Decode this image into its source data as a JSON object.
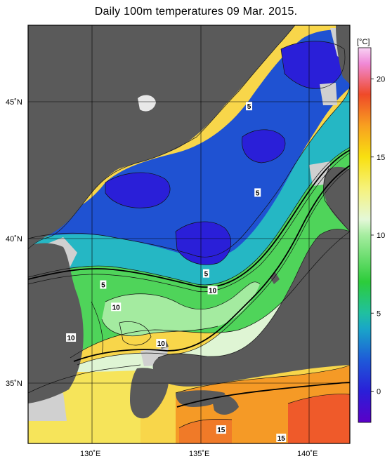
{
  "title": "Daily 100m temperatures 09 Mar. 2015.",
  "map": {
    "lat_labels": [
      "45˚N",
      "40˚N",
      "35˚N"
    ],
    "lon_labels": [
      "130˚E",
      "135˚E",
      "140˚E"
    ],
    "lat_values": [
      45,
      40,
      35
    ],
    "lon_values": [
      130,
      135,
      140
    ],
    "lon_range": [
      127,
      142
    ],
    "lat_range": [
      33,
      48
    ],
    "contour_labels": [
      {
        "text": "5",
        "lon": 137.3,
        "lat": 45.1
      },
      {
        "text": "5",
        "lon": 130.5,
        "lat": 38.7
      },
      {
        "text": "5",
        "lon": 135.3,
        "lat": 39.1
      },
      {
        "text": "5",
        "lon": 137.7,
        "lat": 42.0
      },
      {
        "text": "10",
        "lon": 131.1,
        "lat": 37.9
      },
      {
        "text": "10",
        "lon": 129.0,
        "lat": 36.8
      },
      {
        "text": "10",
        "lon": 135.6,
        "lat": 38.5
      },
      {
        "text": "10",
        "lon": 133.2,
        "lat": 36.6
      },
      {
        "text": "15",
        "lon": 136.0,
        "lat": 33.5
      },
      {
        "text": "15",
        "lon": 138.8,
        "lat": 33.2
      }
    ],
    "colors": {
      "land": "#5a5a5a",
      "shelf": "#d0d0d0",
      "grid": "#000000"
    }
  },
  "colorbar": {
    "unit": "[°C]",
    "tick_labels": [
      "20",
      "15",
      "10",
      "5",
      "0"
    ],
    "tick_values": [
      20,
      15,
      10,
      5,
      0
    ],
    "range": [
      -2,
      22
    ],
    "stops": [
      {
        "v": -2,
        "c": "#5a00c8"
      },
      {
        "v": 0,
        "c": "#2a1fd8"
      },
      {
        "v": 2,
        "c": "#1e5ad8"
      },
      {
        "v": 4,
        "c": "#19a6c8"
      },
      {
        "v": 5,
        "c": "#20c0a0"
      },
      {
        "v": 7,
        "c": "#2ccc3a"
      },
      {
        "v": 10,
        "c": "#a6eda0"
      },
      {
        "v": 11,
        "c": "#e4f8d8"
      },
      {
        "v": 13,
        "c": "#f6f27a"
      },
      {
        "v": 15,
        "c": "#f8e010"
      },
      {
        "v": 17,
        "c": "#f8a020"
      },
      {
        "v": 19,
        "c": "#ef4a28"
      },
      {
        "v": 21,
        "c": "#f08ad8"
      },
      {
        "v": 22,
        "c": "#f8d2f4"
      }
    ]
  }
}
